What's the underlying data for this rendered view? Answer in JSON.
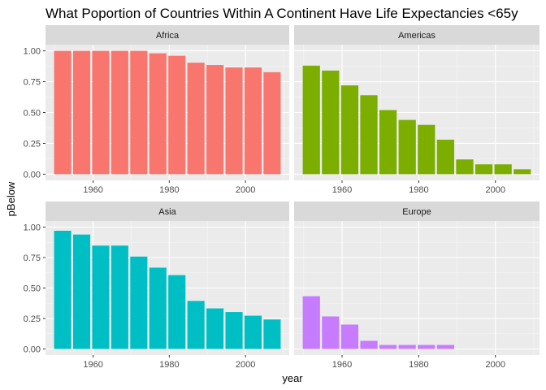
{
  "chart_data": {
    "type": "bar",
    "title": "What Poportion of Countries Within A Continent Have Life Expectancies <65y",
    "xlabel": "year",
    "ylabel": "pBelow",
    "x": [
      1952,
      1957,
      1962,
      1967,
      1972,
      1977,
      1982,
      1987,
      1992,
      1997,
      2002,
      2007
    ],
    "xlim": [
      1947.5,
      2011.5
    ],
    "ylim": [
      -0.05,
      1.05
    ],
    "x_ticks": [
      1960,
      1980,
      2000
    ],
    "x_tick_labels": [
      "1960",
      "1980",
      "2000"
    ],
    "y_ticks": [
      0,
      0.25,
      0.5,
      0.75,
      1.0
    ],
    "y_tick_labels": [
      "0.00",
      "0.25",
      "0.50",
      "0.75",
      "1.00"
    ],
    "grid": true,
    "panels": [
      {
        "name": "Africa",
        "color": "#F8766D",
        "values": [
          1.0,
          1.0,
          1.0,
          1.0,
          1.0,
          0.98,
          0.96,
          0.904,
          0.885,
          0.865,
          0.865,
          0.827
        ]
      },
      {
        "name": "Americas",
        "color": "#7CAE00",
        "values": [
          0.88,
          0.84,
          0.72,
          0.64,
          0.52,
          0.44,
          0.4,
          0.28,
          0.12,
          0.08,
          0.08,
          0.04
        ]
      },
      {
        "name": "Asia",
        "color": "#00BFC4",
        "values": [
          0.97,
          0.939,
          0.848,
          0.848,
          0.758,
          0.667,
          0.606,
          0.394,
          0.333,
          0.303,
          0.273,
          0.242
        ]
      },
      {
        "name": "Europe",
        "color": "#C77CFF",
        "values": [
          0.433,
          0.267,
          0.2,
          0.067,
          0.033,
          0.033,
          0.033,
          0.033,
          0.0,
          0.0,
          0.0,
          0.0
        ]
      }
    ]
  }
}
